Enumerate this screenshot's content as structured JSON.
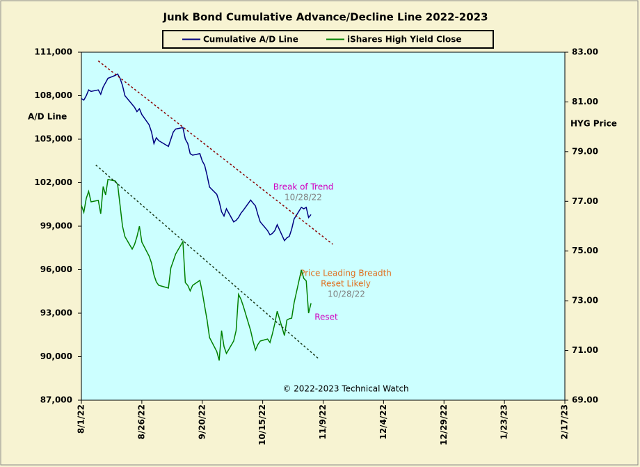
{
  "chart_data": {
    "type": "line",
    "title": "Junk Bond Cumulative  Advance/Decline Line 2022-2023",
    "y_label": "A/D Line",
    "y2_label": "HYG Price",
    "grid": false,
    "legend_position": "top",
    "x": [
      "8/1/22",
      "8/2/22",
      "8/3/22",
      "8/4/22",
      "8/5/22",
      "8/8/22",
      "8/9/22",
      "8/10/22",
      "8/11/22",
      "8/12/22",
      "8/15/22",
      "8/16/22",
      "8/17/22",
      "8/18/22",
      "8/19/22",
      "8/22/22",
      "8/23/22",
      "8/24/22",
      "8/25/22",
      "8/26/22",
      "8/29/22",
      "8/30/22",
      "8/31/22",
      "9/1/22",
      "9/2/22",
      "9/6/22",
      "9/7/22",
      "9/8/22",
      "9/9/22",
      "9/12/22",
      "9/13/22",
      "9/14/22",
      "9/15/22",
      "9/16/22",
      "9/19/22",
      "9/20/22",
      "9/21/22",
      "9/22/22",
      "9/23/22",
      "9/26/22",
      "9/27/22",
      "9/28/22",
      "9/29/22",
      "9/30/22",
      "10/3/22",
      "10/4/22",
      "10/5/22",
      "10/6/22",
      "10/7/22",
      "10/10/22",
      "10/11/22",
      "10/12/22",
      "10/13/22",
      "10/14/22",
      "10/17/22",
      "10/18/22",
      "10/19/22",
      "10/20/22",
      "10/21/22",
      "10/24/22",
      "10/25/22",
      "10/26/22",
      "10/27/22",
      "10/28/22",
      "10/31/22",
      "11/1/22",
      "11/2/22",
      "11/3/22",
      "11/4/22"
    ],
    "series": [
      {
        "name": "Cumulative A/D Line",
        "color": "#000080",
        "axis": "y",
        "values": [
          107800,
          107700,
          108000,
          108400,
          108300,
          108400,
          108100,
          108600,
          108900,
          109200,
          109400,
          109500,
          109200,
          108700,
          108000,
          107400,
          107200,
          106900,
          107100,
          106700,
          106000,
          105500,
          104700,
          105100,
          104900,
          104500,
          105000,
          105500,
          105700,
          105800,
          105000,
          104700,
          104000,
          103900,
          104000,
          103500,
          103200,
          102500,
          101700,
          101200,
          100700,
          100000,
          99700,
          100200,
          99300,
          99400,
          99600,
          99900,
          100100,
          100800,
          100600,
          100400,
          99800,
          99300,
          98700,
          98400,
          98500,
          98700,
          99100,
          98000,
          98200,
          98300,
          98800,
          99500,
          100300,
          100200,
          100300,
          99600,
          99800
        ]
      },
      {
        "name": "iShares High Yield Close",
        "color": "#008000",
        "axis": "y2",
        "values": [
          76.84,
          76.56,
          77.12,
          77.4,
          76.98,
          77.04,
          76.5,
          77.6,
          77.26,
          77.88,
          77.82,
          77.68,
          76.84,
          76.0,
          75.58,
          75.08,
          75.26,
          75.58,
          76.0,
          75.36,
          74.8,
          74.52,
          74.04,
          73.76,
          73.62,
          73.51,
          74.32,
          74.6,
          74.88,
          75.38,
          73.73,
          73.62,
          73.4,
          73.62,
          73.82,
          73.34,
          72.78,
          72.22,
          71.52,
          70.96,
          70.6,
          71.8,
          71.16,
          70.88,
          71.38,
          71.8,
          73.26,
          73.06,
          72.78,
          71.8,
          71.38,
          71.02,
          71.24,
          71.38,
          71.46,
          71.32,
          71.66,
          72.08,
          72.58,
          71.6,
          72.22,
          72.28,
          72.3,
          72.92,
          74.24,
          73.9,
          73.8,
          72.5,
          72.9
        ]
      }
    ],
    "trendlines": [
      {
        "x": [
          "8/8/22",
          "11/13/22"
        ],
        "values": [
          110400,
          97750
        ],
        "color": "#8b0000",
        "axis": "y"
      },
      {
        "x": [
          "8/7/22",
          "11/7/22"
        ],
        "values": [
          78.46,
          70.68
        ],
        "color": "#1a3a1a",
        "axis": "y2"
      }
    ],
    "xlim": [
      "8/1/22",
      "2/17/23"
    ],
    "xticks": [
      "8/1/22",
      "8/26/22",
      "9/20/22",
      "10/15/22",
      "11/9/22",
      "12/4/22",
      "12/29/22",
      "1/23/23",
      "2/17/23"
    ],
    "ylim": [
      87000,
      111000
    ],
    "yticks": [
      {
        "value": 87000,
        "label": "87,000"
      },
      {
        "value": 90000,
        "label": "90,000"
      },
      {
        "value": 93000,
        "label": "93,000"
      },
      {
        "value": 96000,
        "label": "96,000"
      },
      {
        "value": 99000,
        "label": "99,000"
      },
      {
        "value": 102000,
        "label": "102,000"
      },
      {
        "value": 105000,
        "label": "105,000"
      },
      {
        "value": 108000,
        "label": "108,000"
      },
      {
        "value": 111000,
        "label": "111,000"
      }
    ],
    "y2lim": [
      69,
      83
    ],
    "y2ticks": [
      {
        "value": 69,
        "label": "69.00"
      },
      {
        "value": 71,
        "label": "71.00"
      },
      {
        "value": 73,
        "label": "73.00"
      },
      {
        "value": 75,
        "label": "75.00"
      },
      {
        "value": 77,
        "label": "77.00"
      },
      {
        "value": 79,
        "label": "79.00"
      },
      {
        "value": 81,
        "label": "81.00"
      },
      {
        "value": 83,
        "label": "83.00"
      }
    ],
    "annotations": [
      "Break of Trend",
      "10/28/22",
      "Price Leading Breadth",
      "Reset Likely",
      "10/28/22",
      "Reset",
      "© 2022-2023  Technical Watch"
    ]
  }
}
